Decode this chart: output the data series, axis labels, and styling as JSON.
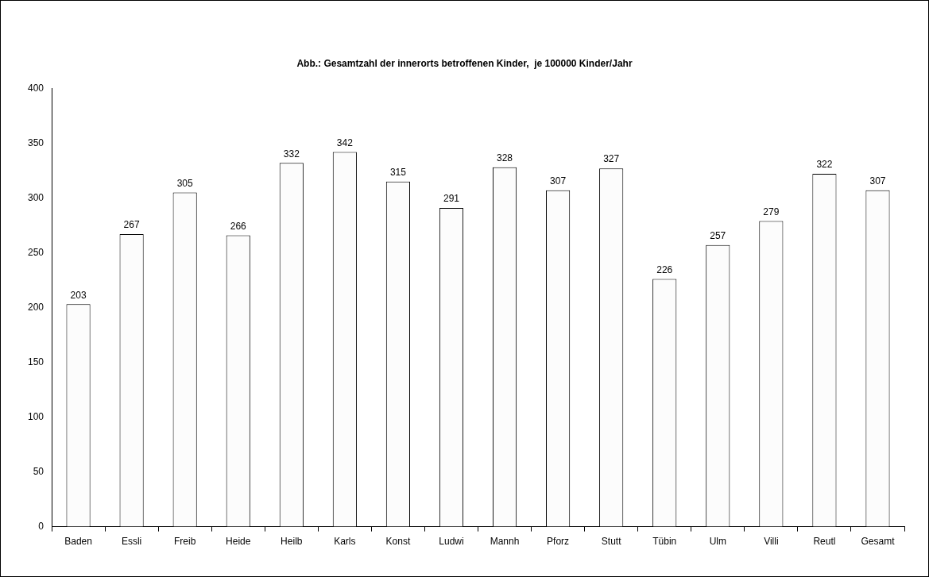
{
  "chart_data": {
    "type": "bar",
    "title": "Abb.: Gesamtzahl der innerorts betroffenen Kinder,  je 100000 Kinder/Jahr",
    "categories": [
      "Baden",
      "Essli",
      "Freib",
      "Heide",
      "Heilb",
      "Karls",
      "Konst",
      "Ludwi",
      "Mannh",
      "Pforz",
      "Stutt",
      "Tübin",
      "Ulm",
      "Villi",
      "Reutl",
      "Gesamt"
    ],
    "values": [
      203,
      267,
      305,
      266,
      332,
      342,
      315,
      291,
      328,
      307,
      327,
      226,
      257,
      279,
      322,
      307
    ],
    "color": "#fcfcfc",
    "ylim": [
      0,
      400
    ],
    "yticks": [
      0,
      50,
      100,
      150,
      200,
      250,
      300,
      350,
      400
    ],
    "grid": false,
    "legend": false,
    "data_labels": true
  }
}
